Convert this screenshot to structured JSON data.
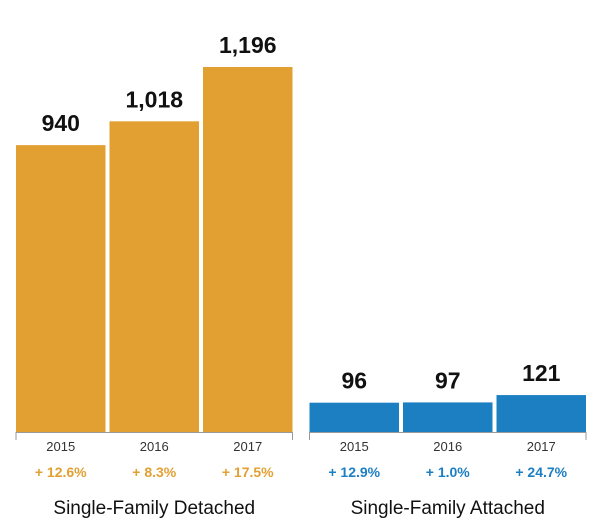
{
  "chart_data": {
    "type": "bar",
    "ylim": [
      0,
      1196
    ],
    "grid": false,
    "groups": [
      {
        "name": "Single-Family Detached",
        "color": "#E2A032",
        "categories": [
          "2015",
          "2016",
          "2017"
        ],
        "values": [
          940,
          1018,
          1196
        ],
        "value_labels": [
          "940",
          "1,018",
          "1,196"
        ],
        "changes": [
          "+ 12.6%",
          "+ 8.3%",
          "+ 17.5%"
        ]
      },
      {
        "name": "Single-Family Attached",
        "color": "#1C7FC2",
        "categories": [
          "2015",
          "2016",
          "2017"
        ],
        "values": [
          96,
          97,
          121
        ],
        "value_labels": [
          "96",
          "97",
          "121"
        ],
        "changes": [
          "+ 12.9%",
          "+ 1.0%",
          "+ 24.7%"
        ]
      }
    ]
  }
}
